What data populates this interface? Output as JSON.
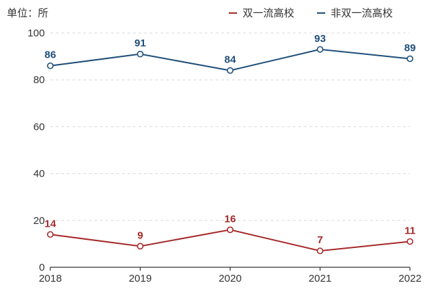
{
  "unit_label": "单位：所",
  "chart_data": {
    "type": "line",
    "x": [
      "2018",
      "2019",
      "2020",
      "2021",
      "2022"
    ],
    "series": [
      {
        "name": "双一流高校",
        "values": [
          14,
          9,
          16,
          7,
          11
        ],
        "color": "#a52a2a"
      },
      {
        "name": "非双一流高校",
        "values": [
          86,
          91,
          84,
          93,
          89
        ],
        "color": "#1f4e79"
      }
    ],
    "yticks": [
      0,
      20,
      40,
      60,
      80,
      100
    ],
    "ylim": [
      0,
      100
    ],
    "grid": true,
    "legend_position": "top-right"
  }
}
